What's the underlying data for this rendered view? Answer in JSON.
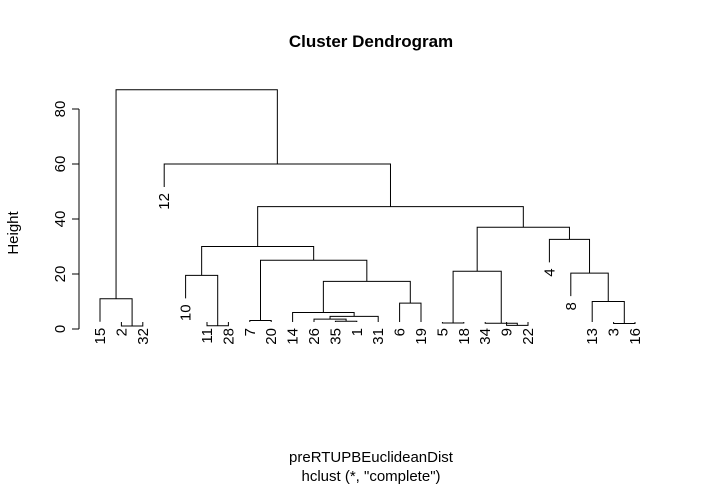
{
  "chart_data": {
    "type": "dendrogram",
    "title": "Cluster Dendrogram",
    "ylabel": "Height",
    "xlabel": "preRTUPBEuclideanDist",
    "sub": "hclust (*, \"complete\")",
    "ylim": [
      0,
      87
    ],
    "yticks": [
      0,
      20,
      40,
      60,
      80
    ],
    "order": [
      "15",
      "2",
      "32",
      "12",
      "10",
      "11",
      "28",
      "7",
      "20",
      "14",
      "26",
      "35",
      "1",
      "31",
      "6",
      "19",
      "5",
      "18",
      "34",
      "9",
      "22",
      "4",
      "8",
      "13",
      "3",
      "16"
    ],
    "merges": [
      {
        "id": "m1",
        "left": "35",
        "right": "1",
        "height": 2.8
      },
      {
        "id": "m2",
        "left": "26",
        "right": "m1",
        "height": 3.6
      },
      {
        "id": "m3",
        "left": "m2",
        "right": "31",
        "height": 4.6
      },
      {
        "id": "m4",
        "left": "14",
        "right": "m3",
        "height": 6.0
      },
      {
        "id": "m5",
        "left": "6",
        "right": "19",
        "height": 9.4
      },
      {
        "id": "m6",
        "left": "m4",
        "right": "m5",
        "height": 17.3
      },
      {
        "id": "m7",
        "left": "7",
        "right": "20",
        "height": 3.1
      },
      {
        "id": "m8",
        "left": "m7",
        "right": "m6",
        "height": 25.0
      },
      {
        "id": "m9",
        "left": "11",
        "right": "28",
        "height": 1.2
      },
      {
        "id": "m10",
        "left": "10",
        "right": "m9",
        "height": 19.5
      },
      {
        "id": "m11",
        "left": "m10",
        "right": "m8",
        "height": 30.0
      },
      {
        "id": "m12",
        "left": "5",
        "right": "18",
        "height": 2.2
      },
      {
        "id": "m13",
        "left": "9",
        "right": "22",
        "height": 1.3
      },
      {
        "id": "m14",
        "left": "34",
        "right": "m13",
        "height": 2.1
      },
      {
        "id": "m15",
        "left": "m12",
        "right": "m14",
        "height": 21.0
      },
      {
        "id": "m16",
        "left": "3",
        "right": "16",
        "height": 2.0
      },
      {
        "id": "m17",
        "left": "13",
        "right": "m16",
        "height": 10.0
      },
      {
        "id": "m18",
        "left": "8",
        "right": "m17",
        "height": 20.3
      },
      {
        "id": "m19",
        "left": "4",
        "right": "m18",
        "height": 32.6
      },
      {
        "id": "m20",
        "left": "m15",
        "right": "m19",
        "height": 37.0
      },
      {
        "id": "m21",
        "left": "m11",
        "right": "m20",
        "height": 44.5
      },
      {
        "id": "m22",
        "left": "12",
        "right": "m21",
        "height": 60.0
      },
      {
        "id": "m23",
        "left": "2",
        "right": "32",
        "height": 1.1
      },
      {
        "id": "m24",
        "left": "15",
        "right": "m23",
        "height": 11.0
      },
      {
        "id": "m25",
        "left": "m24",
        "right": "m22",
        "height": 87.0
      }
    ]
  }
}
